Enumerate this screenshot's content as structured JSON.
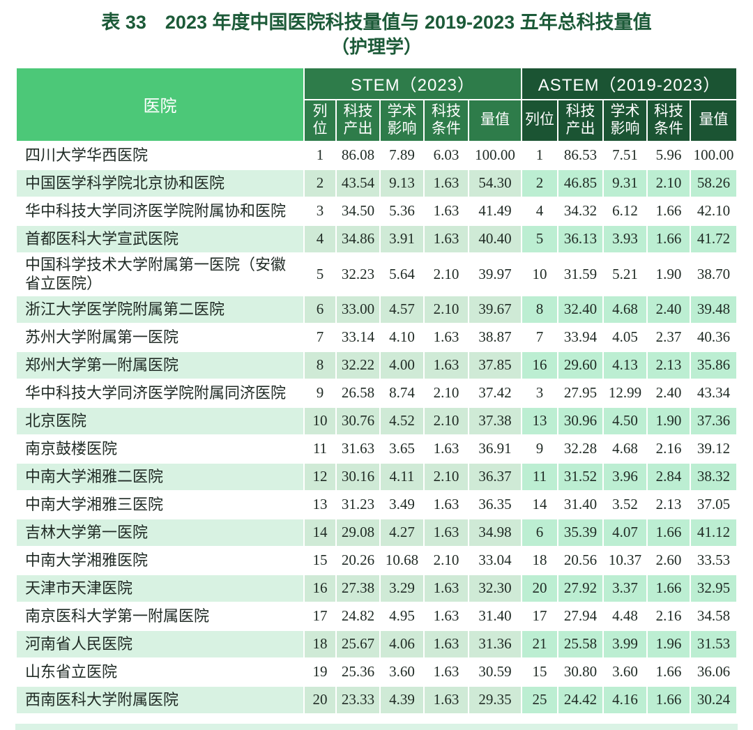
{
  "title": {
    "line1": "表 33　2023 年度中国医院科技量值与 2019-2023 五年总科技量值",
    "line2": "（护理学）"
  },
  "table": {
    "hospital_header": "医院",
    "groups": [
      {
        "label": "STEM（2023）"
      },
      {
        "label": "ASTEM（2019-2023）"
      }
    ],
    "subheaders": [
      "列位",
      "科技产出",
      "学术影响",
      "科技条件",
      "量值"
    ],
    "rows": [
      {
        "hospital": "四川大学华西医院",
        "stem": [
          "1",
          "86.08",
          "7.89",
          "6.03",
          "100.00"
        ],
        "astem": [
          "1",
          "86.53",
          "7.51",
          "5.96",
          "100.00"
        ]
      },
      {
        "hospital": "中国医学科学院北京协和医院",
        "stem": [
          "2",
          "43.54",
          "9.13",
          "1.63",
          "54.30"
        ],
        "astem": [
          "2",
          "46.85",
          "9.31",
          "2.10",
          "58.26"
        ]
      },
      {
        "hospital": "华中科技大学同济医学院附属协和医院",
        "stem": [
          "3",
          "34.50",
          "5.36",
          "1.63",
          "41.49"
        ],
        "astem": [
          "4",
          "34.32",
          "6.12",
          "1.66",
          "42.10"
        ]
      },
      {
        "hospital": "首都医科大学宣武医院",
        "stem": [
          "4",
          "34.86",
          "3.91",
          "1.63",
          "40.40"
        ],
        "astem": [
          "5",
          "36.13",
          "3.93",
          "1.66",
          "41.72"
        ]
      },
      {
        "hospital": "中国科学技术大学附属第一医院（安徽省立医院）",
        "stem": [
          "5",
          "32.23",
          "5.64",
          "2.10",
          "39.97"
        ],
        "astem": [
          "10",
          "31.59",
          "5.21",
          "1.90",
          "38.70"
        ]
      },
      {
        "hospital": "浙江大学医学院附属第二医院",
        "stem": [
          "6",
          "33.00",
          "4.57",
          "2.10",
          "39.67"
        ],
        "astem": [
          "8",
          "32.40",
          "4.68",
          "2.40",
          "39.48"
        ]
      },
      {
        "hospital": "苏州大学附属第一医院",
        "stem": [
          "7",
          "33.14",
          "4.10",
          "1.63",
          "38.87"
        ],
        "astem": [
          "7",
          "33.94",
          "4.05",
          "2.37",
          "40.36"
        ]
      },
      {
        "hospital": "郑州大学第一附属医院",
        "stem": [
          "8",
          "32.22",
          "4.00",
          "1.63",
          "37.85"
        ],
        "astem": [
          "16",
          "29.60",
          "4.13",
          "2.13",
          "35.86"
        ]
      },
      {
        "hospital": "华中科技大学同济医学院附属同济医院",
        "stem": [
          "9",
          "26.58",
          "8.74",
          "2.10",
          "37.42"
        ],
        "astem": [
          "3",
          "27.95",
          "12.99",
          "2.40",
          "43.34"
        ]
      },
      {
        "hospital": "北京医院",
        "stem": [
          "10",
          "30.76",
          "4.52",
          "2.10",
          "37.38"
        ],
        "astem": [
          "13",
          "30.96",
          "4.50",
          "1.90",
          "37.36"
        ]
      },
      {
        "hospital": "南京鼓楼医院",
        "stem": [
          "11",
          "31.63",
          "3.65",
          "1.63",
          "36.91"
        ],
        "astem": [
          "9",
          "32.28",
          "4.68",
          "2.16",
          "39.12"
        ]
      },
      {
        "hospital": "中南大学湘雅二医院",
        "stem": [
          "12",
          "30.16",
          "4.11",
          "2.10",
          "36.37"
        ],
        "astem": [
          "11",
          "31.52",
          "3.96",
          "2.84",
          "38.32"
        ]
      },
      {
        "hospital": "中南大学湘雅三医院",
        "stem": [
          "13",
          "31.23",
          "3.49",
          "1.63",
          "36.35"
        ],
        "astem": [
          "14",
          "31.40",
          "3.52",
          "2.13",
          "37.05"
        ]
      },
      {
        "hospital": "吉林大学第一医院",
        "stem": [
          "14",
          "29.08",
          "4.27",
          "1.63",
          "34.98"
        ],
        "astem": [
          "6",
          "35.39",
          "4.07",
          "1.66",
          "41.12"
        ]
      },
      {
        "hospital": "中南大学湘雅医院",
        "stem": [
          "15",
          "20.26",
          "10.68",
          "2.10",
          "33.04"
        ],
        "astem": [
          "18",
          "20.56",
          "10.37",
          "2.60",
          "33.53"
        ]
      },
      {
        "hospital": "天津市天津医院",
        "stem": [
          "16",
          "27.38",
          "3.29",
          "1.63",
          "32.30"
        ],
        "astem": [
          "20",
          "27.92",
          "3.37",
          "1.66",
          "32.95"
        ]
      },
      {
        "hospital": "南京医科大学第一附属医院",
        "stem": [
          "17",
          "24.82",
          "4.95",
          "1.63",
          "31.40"
        ],
        "astem": [
          "17",
          "27.94",
          "4.48",
          "2.16",
          "34.58"
        ]
      },
      {
        "hospital": "河南省人民医院",
        "stem": [
          "18",
          "25.67",
          "4.06",
          "1.63",
          "31.36"
        ],
        "astem": [
          "21",
          "25.58",
          "3.99",
          "1.96",
          "31.53"
        ]
      },
      {
        "hospital": "山东省立医院",
        "stem": [
          "19",
          "25.36",
          "3.60",
          "1.63",
          "30.59"
        ],
        "astem": [
          "15",
          "30.80",
          "3.60",
          "1.66",
          "36.06"
        ]
      },
      {
        "hospital": "西南医科大学附属医院",
        "stem": [
          "20",
          "23.33",
          "4.39",
          "1.63",
          "29.35"
        ],
        "astem": [
          "25",
          "24.42",
          "4.16",
          "1.66",
          "30.24"
        ]
      }
    ]
  },
  "colors": {
    "title_green": "#1c5a38",
    "hospital_header_bg": "#4cc878",
    "stem_header_bg": "#2e7c4a",
    "astem_header_bg": "#1b5433",
    "stripe_hospital": "#d8f2e2",
    "stripe_stem": "#cfead6",
    "stripe_astem": "#bceed2"
  }
}
